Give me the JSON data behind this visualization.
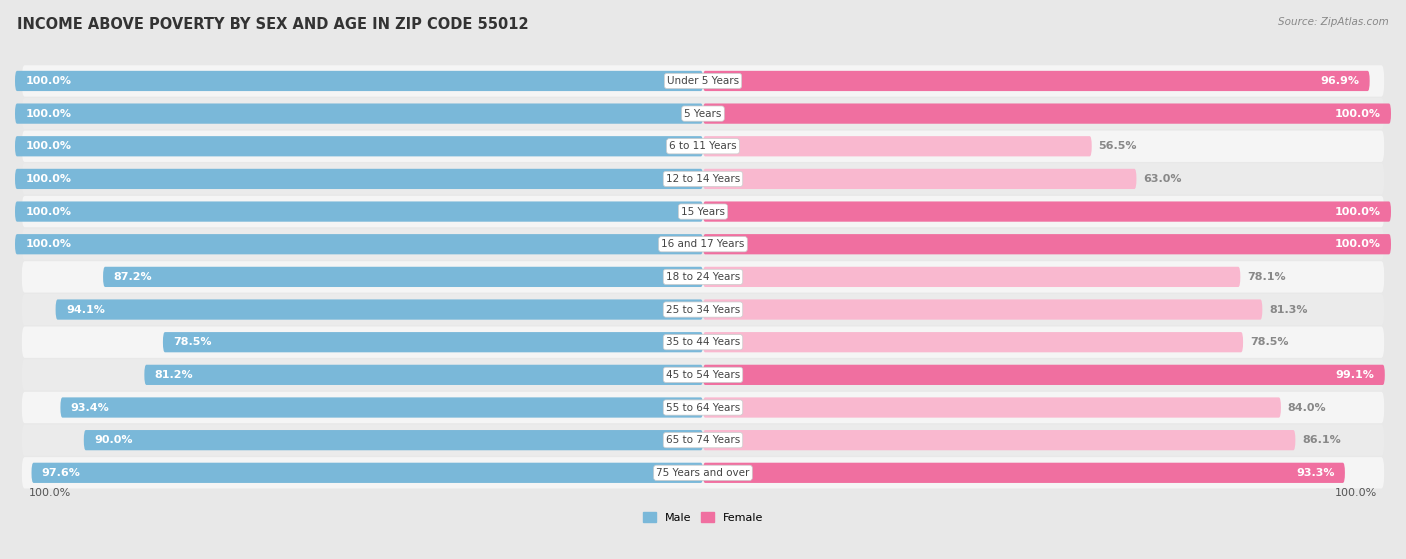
{
  "title": "INCOME ABOVE POVERTY BY SEX AND AGE IN ZIP CODE 55012",
  "source": "Source: ZipAtlas.com",
  "categories": [
    "Under 5 Years",
    "5 Years",
    "6 to 11 Years",
    "12 to 14 Years",
    "15 Years",
    "16 and 17 Years",
    "18 to 24 Years",
    "25 to 34 Years",
    "35 to 44 Years",
    "45 to 54 Years",
    "55 to 64 Years",
    "65 to 74 Years",
    "75 Years and over"
  ],
  "male_values": [
    100.0,
    100.0,
    100.0,
    100.0,
    100.0,
    100.0,
    87.2,
    94.1,
    78.5,
    81.2,
    93.4,
    90.0,
    97.6
  ],
  "female_values": [
    96.9,
    100.0,
    56.5,
    63.0,
    100.0,
    100.0,
    78.1,
    81.3,
    78.5,
    99.1,
    84.0,
    86.1,
    93.3
  ],
  "male_color": "#7ab8d9",
  "female_color": "#f06fa0",
  "female_color_light": "#f9b8cf",
  "bg_color": "#e8e8e8",
  "row_bg_light": "#f0f0f0",
  "row_bg_white": "#fafafa",
  "legend_labels": [
    "Male",
    "Female"
  ],
  "title_fontsize": 10.5,
  "source_fontsize": 7.5,
  "label_fontsize": 8,
  "tick_fontsize": 8
}
